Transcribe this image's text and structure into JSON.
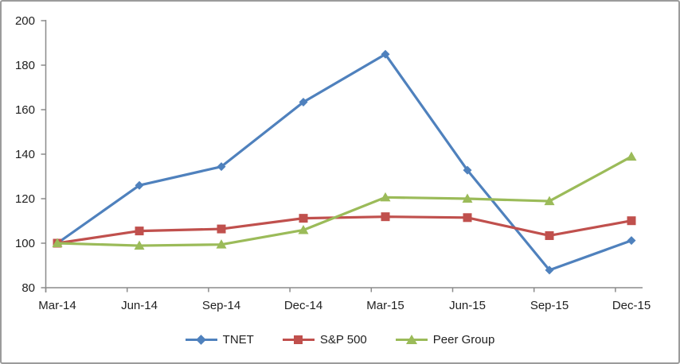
{
  "chart_data": {
    "type": "line",
    "title": "",
    "xlabel": "",
    "ylabel": "",
    "categories": [
      "Mar-14",
      "Jun-14",
      "Sep-14",
      "Dec-14",
      "Mar-15",
      "Jun-15",
      "Sep-15",
      "Dec-15"
    ],
    "series": [
      {
        "name": "TNET",
        "color": "#4F81BD",
        "marker": "diamond",
        "values": [
          100,
          126.0,
          134.4,
          163.4,
          184.9,
          132.8,
          87.9,
          101.2
        ]
      },
      {
        "name": "S&P 500",
        "color": "#C0504D",
        "marker": "square",
        "values": [
          100,
          105.5,
          106.4,
          111.2,
          111.9,
          111.5,
          103.4,
          110.1
        ]
      },
      {
        "name": "Peer Group",
        "color": "#9BBB59",
        "marker": "triangle",
        "values": [
          100,
          98.9,
          99.4,
          105.9,
          120.6,
          120.0,
          118.9,
          138.9
        ]
      }
    ],
    "ylim": [
      80,
      200
    ],
    "ytick_step": 20,
    "ytick_labels": [
      "80",
      "100",
      "120",
      "140",
      "160",
      "180",
      "200"
    ],
    "grid": false,
    "legend_position": "bottom",
    "axis_color": "#8b8b8b",
    "text_color": "#1f1f1f",
    "background_color": "#ffffff",
    "border_color": "#9b9b9b"
  }
}
